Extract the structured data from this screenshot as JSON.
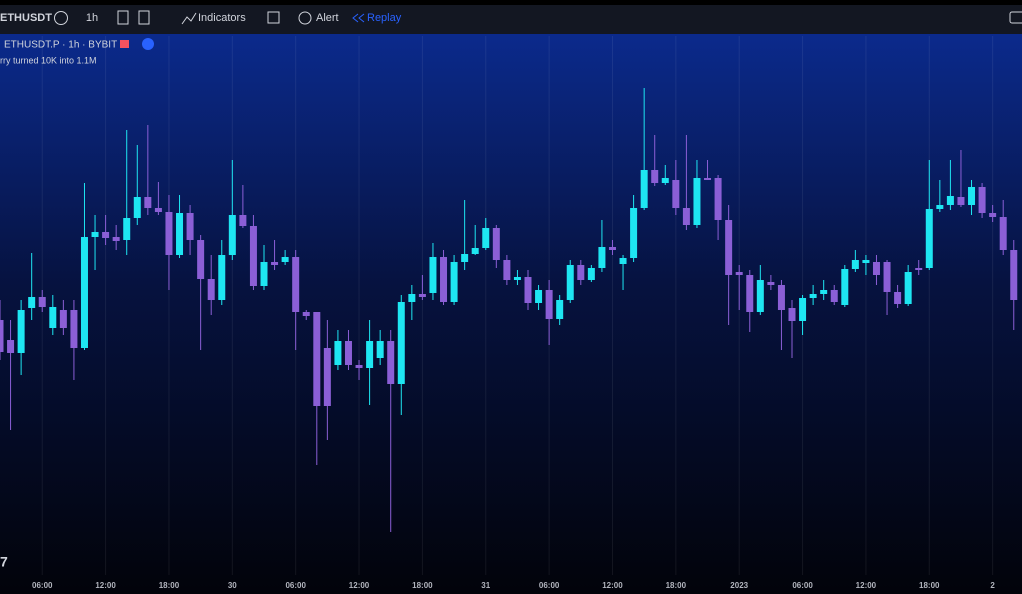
{
  "toolbar": {
    "symbol": "ETHUSDT",
    "interval": "1h",
    "indicators": "Indicators",
    "alert": "Alert",
    "replay": "Replay"
  },
  "legend": {
    "title": "ETHUSDT.P · 1h · BYBIT",
    "note": "rry turned 10K into 1.1M"
  },
  "chart_data": {
    "type": "candlestick",
    "categories": [
      null,
      null,
      null,
      null,
      "06:00",
      null,
      null,
      null,
      null,
      null,
      "12:00",
      null,
      null,
      null,
      null,
      null,
      "18:00",
      null,
      null,
      null,
      null,
      null,
      "30",
      null,
      null,
      null,
      null,
      null,
      "06:00",
      null,
      null,
      null,
      null,
      null,
      "12:00",
      null,
      null,
      null,
      null,
      null,
      "18:00",
      null,
      null,
      null,
      null,
      null,
      "31",
      null,
      null,
      null,
      null,
      null,
      "06:00",
      null,
      null,
      null,
      null,
      null,
      "12:00",
      null,
      null,
      null,
      null,
      null,
      "18:00",
      null,
      null,
      null,
      null,
      null,
      "2023",
      null,
      null,
      null,
      null,
      null,
      "06:00",
      null,
      null,
      null,
      null,
      null,
      "12:00",
      null,
      null,
      null,
      null,
      null,
      "18:00",
      null,
      null,
      null,
      null,
      null,
      "2",
      null,
      null
    ],
    "open": [
      255,
      235,
      222,
      267,
      278,
      247,
      265,
      265,
      227,
      338,
      343,
      338,
      335,
      357,
      378,
      367,
      363,
      320,
      362,
      335,
      296,
      275,
      320,
      360,
      349,
      289,
      313,
      313,
      318,
      263,
      263,
      227,
      210,
      234,
      210,
      207,
      217,
      234,
      191,
      273,
      281,
      282,
      318,
      273,
      313,
      321,
      327,
      347,
      315,
      295,
      298,
      272,
      285,
      256,
      275,
      310,
      295,
      307,
      328,
      311,
      317,
      367,
      405,
      392,
      395,
      367,
      350,
      397,
      397,
      355,
      303,
      300,
      263,
      293,
      290,
      267,
      254,
      277,
      281,
      285,
      270,
      306,
      312,
      313,
      313,
      283,
      271,
      307,
      307,
      366,
      370,
      378,
      370,
      388,
      362,
      358,
      325
    ],
    "high": [
      275,
      255,
      275,
      322,
      285,
      280,
      275,
      275,
      392,
      360,
      360,
      350,
      445,
      430,
      450,
      393,
      380,
      380,
      370,
      340,
      320,
      335,
      415,
      390,
      360,
      330,
      335,
      325,
      325,
      265,
      263,
      255,
      245,
      245,
      215,
      255,
      245,
      245,
      280,
      290,
      300,
      332,
      325,
      320,
      375,
      350,
      357,
      350,
      320,
      305,
      305,
      290,
      295,
      280,
      315,
      315,
      310,
      355,
      335,
      320,
      380,
      487,
      440,
      410,
      415,
      440,
      415,
      415,
      400,
      370,
      310,
      305,
      310,
      300,
      295,
      275,
      280,
      290,
      295,
      290,
      310,
      325,
      320,
      320,
      315,
      290,
      310,
      315,
      415,
      395,
      415,
      425,
      395,
      392,
      370,
      375,
      335
    ],
    "low": [
      215,
      145,
      200,
      255,
      263,
      240,
      240,
      195,
      225,
      305,
      330,
      325,
      320,
      350,
      360,
      360,
      285,
      317,
      320,
      225,
      260,
      270,
      315,
      347,
      285,
      285,
      305,
      310,
      225,
      255,
      110,
      135,
      205,
      205,
      195,
      170,
      210,
      43,
      160,
      255,
      275,
      275,
      270,
      270,
      305,
      320,
      325,
      307,
      290,
      290,
      265,
      265,
      230,
      250,
      272,
      290,
      293,
      303,
      320,
      285,
      313,
      365,
      389,
      390,
      360,
      345,
      347,
      395,
      335,
      250,
      265,
      243,
      260,
      285,
      225,
      217,
      240,
      270,
      275,
      270,
      268,
      303,
      300,
      290,
      260,
      267,
      269,
      300,
      305,
      363,
      365,
      368,
      360,
      357,
      353,
      320,
      245
    ],
    "close": [
      223,
      222,
      265,
      278,
      268,
      268,
      247,
      227,
      338,
      343,
      337,
      334,
      357,
      378,
      367,
      363,
      320,
      362,
      335,
      296,
      275,
      320,
      360,
      349,
      289,
      313,
      310,
      318,
      263,
      259,
      169,
      169,
      234,
      210,
      207,
      234,
      234,
      191,
      273,
      281,
      278,
      318,
      273,
      313,
      321,
      327,
      347,
      315,
      295,
      298,
      272,
      285,
      256,
      275,
      310,
      295,
      307,
      328,
      325,
      317,
      367,
      405,
      392,
      397,
      367,
      350,
      397,
      395,
      355,
      300,
      300,
      263,
      295,
      290,
      265,
      254,
      277,
      281,
      285,
      273,
      306,
      315,
      315,
      300,
      283,
      271,
      303,
      305,
      366,
      370,
      379,
      370,
      388,
      362,
      358,
      325,
      275
    ],
    "ylim": [
      0,
      539
    ],
    "up_color": "#1ee6f2",
    "down_color": "#8b5fd6",
    "grid": true
  }
}
